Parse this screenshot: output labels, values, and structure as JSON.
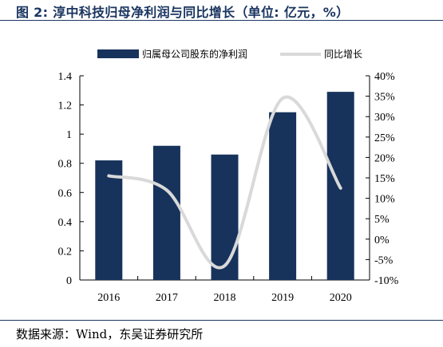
{
  "figure": {
    "title": "图 2: 淳中科技归母净利润与同比增长（单位: 亿元，%）",
    "source": "数据来源：Wind，东吴证券研究所"
  },
  "chart_data": {
    "type": "bar",
    "categories": [
      "2016",
      "2017",
      "2018",
      "2019",
      "2020"
    ],
    "series": [
      {
        "name": "归属母公司股东的净利润",
        "type": "bar",
        "axis": "left",
        "values": [
          0.82,
          0.92,
          0.86,
          1.15,
          1.29
        ],
        "color": "#17335c"
      },
      {
        "name": "同比增长",
        "type": "line",
        "axis": "right",
        "smooth": true,
        "values": [
          15.5,
          12.0,
          -6.5,
          34.5,
          12.5
        ],
        "color": "#d9d9d9"
      }
    ],
    "left_axis": {
      "ylim": [
        0,
        1.4
      ],
      "ticks": [
        "0",
        "0.2",
        "0.4",
        "0.6",
        "0.8",
        "1",
        "1.2",
        "1.4"
      ]
    },
    "right_axis": {
      "ylim": [
        -10,
        40
      ],
      "ticks": [
        "-10%",
        "-5%",
        "0%",
        "5%",
        "10%",
        "15%",
        "20%",
        "25%",
        "30%",
        "35%",
        "40%"
      ]
    },
    "legend": "top",
    "grid": false
  }
}
